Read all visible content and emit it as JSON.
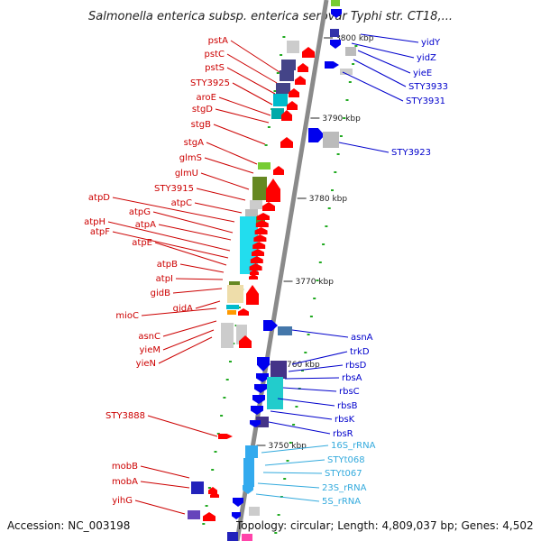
{
  "title": "Salmonella enterica subsp. enterica serovar Typhi str. CT18,...",
  "footer": {
    "accession": "Accession: NC_003198",
    "summary": "Topology: circular; Length: 4,809,037 bp; Genes: 4,502"
  },
  "colors": {
    "left_label": "#cc0000",
    "right_label": "#0000cc",
    "rna_label": "#33aadd",
    "left_arrow": "#ff0000",
    "right_arrow": "#0000ee",
    "backbone": "#8a8a8a",
    "tick": "#22aa22"
  },
  "ticks": [
    {
      "label": "3800 kbp",
      "kbp": 3800
    },
    {
      "label": "3790 kbp",
      "kbp": 3790
    },
    {
      "label": "3780 kbp",
      "kbp": 3780
    },
    {
      "label": "3770 kbp",
      "kbp": 3770
    },
    {
      "label": "3760 kbp",
      "kbp": 3760
    },
    {
      "label": "3750 kbp",
      "kbp": 3750
    }
  ],
  "left_genes": [
    "pstA",
    "pstC",
    "pstS",
    "STY3925",
    "aroE",
    "stgD",
    "stgB",
    "stgA",
    "glmS",
    "glmU",
    "STY3915",
    "atpC",
    "atpD",
    "atpG",
    "atpA",
    "atpH",
    "atpF",
    "atpE",
    "atpB",
    "atpI",
    "gidB",
    "gidA",
    "mioC",
    "asnC",
    "yieM",
    "yieN",
    "STY3888",
    "mobB",
    "mobA",
    "yihG"
  ],
  "right_genes": [
    "yidY",
    "yidZ",
    "yieE",
    "STY3933",
    "STY3931",
    "STY3923",
    "asnA",
    "trkD",
    "rbsD",
    "rbsA",
    "rbsC",
    "rbsB",
    "rbsK",
    "rbsR"
  ],
  "rna_genes": [
    "16S_rRNA",
    "STYt068",
    "STYt067",
    "23S_rRNA",
    "5S_rRNA"
  ]
}
